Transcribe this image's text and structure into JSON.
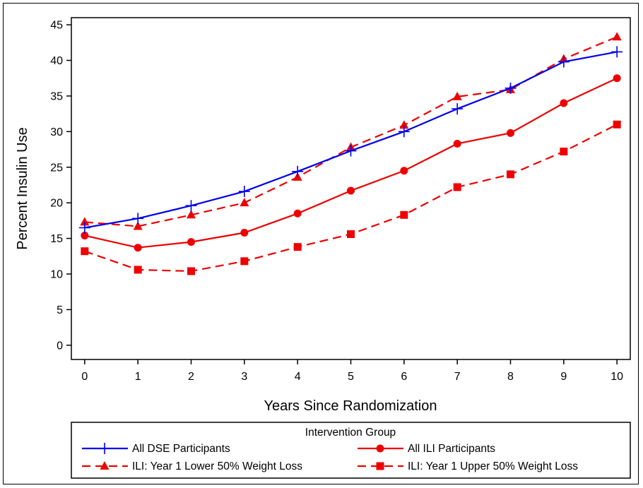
{
  "chart_data": {
    "type": "line",
    "xlabel": "Years Since Randomization",
    "ylabel": "Percent Insulin Use",
    "x": [
      0,
      1,
      2,
      3,
      4,
      5,
      6,
      7,
      8,
      9,
      10
    ],
    "xlim": [
      -0.25,
      10.25
    ],
    "ylim": [
      -2,
      46
    ],
    "xticks": [
      "0",
      "1",
      "2",
      "3",
      "4",
      "5",
      "6",
      "7",
      "8",
      "9",
      "10"
    ],
    "yticks": [
      "0",
      "5",
      "10",
      "15",
      "20",
      "25",
      "30",
      "35",
      "40",
      "45"
    ],
    "grid": false,
    "legend": {
      "title": "Intervention Group",
      "placement": "bottom"
    },
    "series": [
      {
        "name": "All DSE Participants",
        "color": "#0000ee",
        "marker": "plus",
        "dash": "solid",
        "values": [
          16.5,
          17.8,
          19.6,
          21.6,
          24.4,
          27.3,
          30.0,
          33.2,
          36.1,
          39.8,
          41.2
        ]
      },
      {
        "name": "All ILI Participants",
        "color": "#ee0000",
        "marker": "circle",
        "dash": "solid",
        "values": [
          15.4,
          13.7,
          14.5,
          15.8,
          18.5,
          21.7,
          24.5,
          28.3,
          29.8,
          34.0,
          37.5
        ]
      },
      {
        "name": "ILI: Year 1 Lower 50% Weight Loss",
        "color": "#ee0000",
        "marker": "triangle",
        "dash": "dashed",
        "values": [
          17.3,
          16.7,
          18.3,
          20.0,
          23.6,
          27.8,
          30.9,
          34.9,
          35.9,
          40.2,
          43.3
        ]
      },
      {
        "name": "ILI: Year 1 Upper 50% Weight Loss",
        "color": "#ee0000",
        "marker": "square",
        "dash": "dashed",
        "values": [
          13.2,
          10.6,
          10.4,
          11.8,
          13.8,
          15.6,
          18.3,
          22.2,
          24.0,
          27.2,
          31.0
        ]
      }
    ]
  }
}
